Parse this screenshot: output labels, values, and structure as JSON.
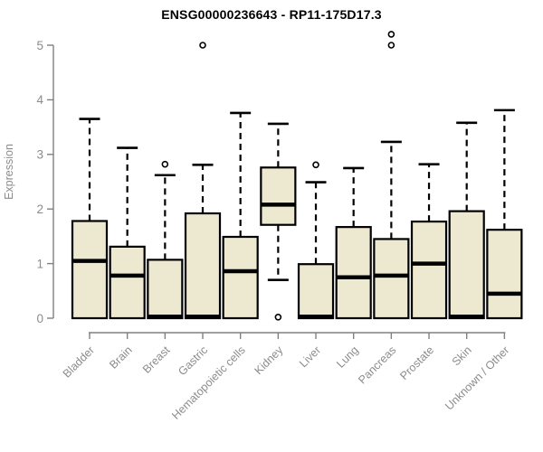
{
  "colors": {
    "box_fill": "#EDE8D0",
    "box_stroke": "#000000",
    "median": "#000000",
    "axis": "#808080",
    "tick_label": "#8C8C8C",
    "axis_title": "#8C8C8C",
    "title": "#000000",
    "background": "#FFFFFF"
  },
  "chart_data": {
    "type": "boxplot",
    "title": "ENSG00000236643 - RP11-175D17.3",
    "ylabel": "Expression",
    "xlabel": "",
    "ylim": [
      0,
      5
    ],
    "yticks": [
      0,
      1,
      2,
      3,
      4,
      5
    ],
    "grid": false,
    "legend": "none",
    "categories": [
      "Bladder",
      "Brain",
      "Breast",
      "Gastric",
      "Hematopoietic cells",
      "Kidney",
      "Liver",
      "Lung",
      "Pancreas",
      "Prostate",
      "Skin",
      "Unknown / Other"
    ],
    "series": [
      {
        "name": "Bladder",
        "whisker_low": 0,
        "q1": 0,
        "median": 1.05,
        "q3": 1.78,
        "whisker_high": 3.65,
        "outliers": []
      },
      {
        "name": "Brain",
        "whisker_low": 0,
        "q1": 0,
        "median": 0.78,
        "q3": 1.31,
        "whisker_high": 3.12,
        "outliers": []
      },
      {
        "name": "Breast",
        "whisker_low": 0,
        "q1": 0,
        "median": 0.03,
        "q3": 1.07,
        "whisker_high": 2.62,
        "outliers": [
          2.82
        ]
      },
      {
        "name": "Gastric",
        "whisker_low": 0,
        "q1": 0,
        "median": 0.03,
        "q3": 1.92,
        "whisker_high": 2.81,
        "outliers": [
          5.0
        ]
      },
      {
        "name": "Hematopoietic cells",
        "whisker_low": 0,
        "q1": 0,
        "median": 0.86,
        "q3": 1.49,
        "whisker_high": 3.76,
        "outliers": []
      },
      {
        "name": "Kidney",
        "whisker_low": 0.7,
        "q1": 1.71,
        "median": 2.08,
        "q3": 2.76,
        "whisker_high": 3.56,
        "outliers": [
          0.02
        ]
      },
      {
        "name": "Liver",
        "whisker_low": 0,
        "q1": 0,
        "median": 0.03,
        "q3": 0.99,
        "whisker_high": 2.49,
        "outliers": [
          2.81
        ]
      },
      {
        "name": "Lung",
        "whisker_low": 0,
        "q1": 0,
        "median": 0.75,
        "q3": 1.67,
        "whisker_high": 2.75,
        "outliers": []
      },
      {
        "name": "Pancreas",
        "whisker_low": 0,
        "q1": 0,
        "median": 0.78,
        "q3": 1.45,
        "whisker_high": 3.23,
        "outliers": [
          5.0,
          5.2
        ]
      },
      {
        "name": "Prostate",
        "whisker_low": 0,
        "q1": 0,
        "median": 1.0,
        "q3": 1.77,
        "whisker_high": 2.82,
        "outliers": []
      },
      {
        "name": "Skin",
        "whisker_low": 0,
        "q1": 0,
        "median": 0.03,
        "q3": 1.96,
        "whisker_high": 3.58,
        "outliers": []
      },
      {
        "name": "Unknown / Other",
        "whisker_low": 0,
        "q1": 0,
        "median": 0.45,
        "q3": 1.62,
        "whisker_high": 3.81,
        "outliers": []
      }
    ]
  }
}
